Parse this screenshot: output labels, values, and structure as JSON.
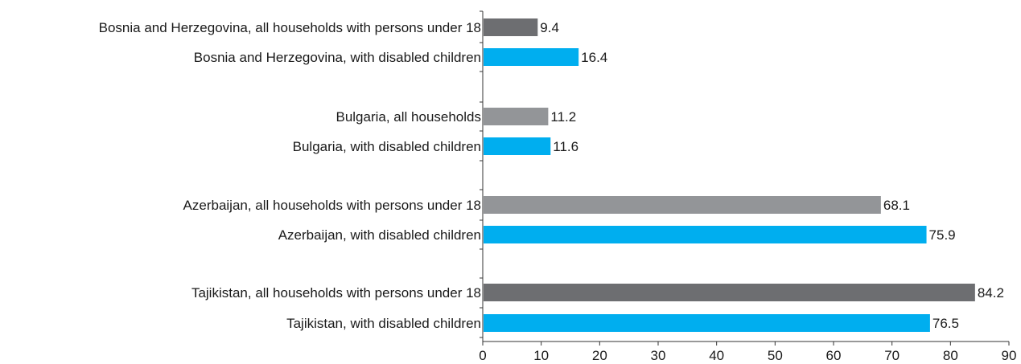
{
  "chart_data": {
    "type": "bar",
    "orientation": "horizontal",
    "title": "",
    "xlabel": "",
    "ylabel": "",
    "xlim": [
      0,
      90
    ],
    "x_ticks": [
      "0",
      "10",
      "20",
      "30",
      "40",
      "50",
      "60",
      "70",
      "80",
      "90"
    ],
    "grid": false,
    "legend": "none",
    "groups": [
      {
        "bars": [
          {
            "label": "Bosnia and Herzegovina, all households with persons under 18",
            "value": 9.4,
            "value_label": "9.4",
            "color": "#6d6e71"
          },
          {
            "label": "Bosnia and Herzegovina, with disabled children",
            "value": 16.4,
            "value_label": "16.4",
            "color": "#00aeef"
          }
        ]
      },
      {
        "bars": [
          {
            "label": "Bulgaria, all households",
            "value": 11.2,
            "value_label": "11.2",
            "color": "#939598"
          },
          {
            "label": "Bulgaria, with disabled children",
            "value": 11.6,
            "value_label": "11.6",
            "color": "#00aeef"
          }
        ]
      },
      {
        "bars": [
          {
            "label": "Azerbaijan, all households with persons under 18",
            "value": 68.1,
            "value_label": "68.1",
            "color": "#939598"
          },
          {
            "label": "Azerbaijan, with disabled children",
            "value": 75.9,
            "value_label": "75.9",
            "color": "#00aeef"
          }
        ]
      },
      {
        "bars": [
          {
            "label": "Tajikistan, all households with persons under 18",
            "value": 84.2,
            "value_label": "84.2",
            "color": "#6d6e71"
          },
          {
            "label": "Tajikistan, with disabled children",
            "value": 76.5,
            "value_label": "76.5",
            "color": "#00aeef"
          }
        ]
      }
    ]
  }
}
